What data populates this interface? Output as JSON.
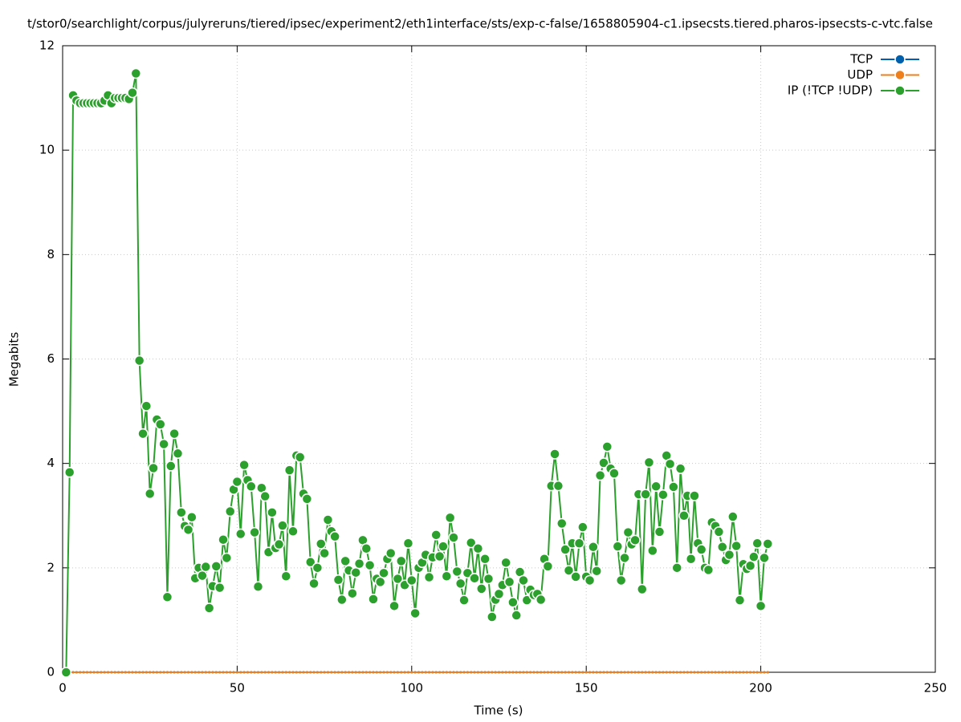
{
  "chart_data": {
    "type": "line",
    "title": "t/stor0/searchlight/corpus/julyreruns/tiered/ipsec/experiment2/eth1interface/sts/exp-c-false/1658805904-c1.ipsecsts.tiered.pharos-ipsecsts-c-vtc.false",
    "x_label": "Time (s)",
    "y_label": "Megabits",
    "xlim": [
      0,
      250
    ],
    "xticks": [
      0,
      50,
      100,
      150,
      200,
      250
    ],
    "ylim": [
      0,
      12
    ],
    "yticks": [
      0,
      2,
      4,
      6,
      8,
      10,
      12
    ],
    "grid": true,
    "legend": "top-right",
    "x": [
      1,
      2,
      3,
      4,
      5,
      6,
      7,
      8,
      9,
      10,
      11,
      12,
      13,
      14,
      15,
      16,
      17,
      18,
      19,
      20,
      21,
      22,
      23,
      24,
      25,
      26,
      27,
      28,
      29,
      30,
      31,
      32,
      33,
      34,
      35,
      36,
      37,
      38,
      39,
      40,
      41,
      42,
      43,
      44,
      45,
      46,
      47,
      48,
      49,
      50,
      51,
      52,
      53,
      54,
      55,
      56,
      57,
      58,
      59,
      60,
      61,
      62,
      63,
      64,
      65,
      66,
      67,
      68,
      69,
      70,
      71,
      72,
      73,
      74,
      75,
      76,
      77,
      78,
      79,
      80,
      81,
      82,
      83,
      84,
      85,
      86,
      87,
      88,
      89,
      90,
      91,
      92,
      93,
      94,
      95,
      96,
      97,
      98,
      99,
      100,
      101,
      102,
      103,
      104,
      105,
      106,
      107,
      108,
      109,
      110,
      111,
      112,
      113,
      114,
      115,
      116,
      117,
      118,
      119,
      120,
      121,
      122,
      123,
      124,
      125,
      126,
      127,
      128,
      129,
      130,
      131,
      132,
      133,
      134,
      135,
      136,
      137,
      138,
      139,
      140,
      141,
      142,
      143,
      144,
      145,
      146,
      147,
      148,
      149,
      150,
      151,
      152,
      153,
      154,
      155,
      156,
      157,
      158,
      159,
      160,
      161,
      162,
      163,
      164,
      165,
      166,
      167,
      168,
      169,
      170,
      171,
      172,
      173,
      174,
      175,
      176,
      177,
      178,
      179,
      180,
      181,
      182,
      183,
      184,
      185,
      186,
      187,
      188,
      189,
      190,
      191,
      192,
      193,
      194,
      195,
      196,
      197,
      198,
      199,
      200,
      201,
      202
    ],
    "series": [
      {
        "name": "TCP",
        "color": "#0060ad",
        "values": [
          0,
          0,
          0,
          0,
          0,
          0,
          0,
          0,
          0,
          0,
          0,
          0,
          0,
          0,
          0,
          0,
          0,
          0,
          0,
          0,
          0,
          0,
          0,
          0,
          0,
          0,
          0,
          0,
          0,
          0,
          0,
          0,
          0,
          0,
          0,
          0,
          0,
          0,
          0,
          0,
          0,
          0,
          0,
          0,
          0,
          0,
          0,
          0,
          0,
          0,
          0,
          0,
          0,
          0,
          0,
          0,
          0,
          0,
          0,
          0,
          0,
          0,
          0,
          0,
          0,
          0,
          0,
          0,
          0,
          0,
          0,
          0,
          0,
          0,
          0,
          0,
          0,
          0,
          0,
          0,
          0,
          0,
          0,
          0,
          0,
          0,
          0,
          0,
          0,
          0,
          0,
          0,
          0,
          0,
          0,
          0,
          0,
          0,
          0,
          0,
          0,
          0,
          0,
          0,
          0,
          0,
          0,
          0,
          0,
          0,
          0,
          0,
          0,
          0,
          0,
          0,
          0,
          0,
          0,
          0,
          0,
          0,
          0,
          0,
          0,
          0,
          0,
          0,
          0,
          0,
          0,
          0,
          0,
          0,
          0,
          0,
          0,
          0,
          0,
          0,
          0,
          0,
          0,
          0,
          0,
          0,
          0,
          0,
          0,
          0,
          0,
          0,
          0,
          0,
          0,
          0,
          0,
          0,
          0,
          0,
          0,
          0,
          0,
          0,
          0,
          0,
          0,
          0,
          0,
          0,
          0,
          0,
          0,
          0,
          0,
          0,
          0,
          0,
          0,
          0,
          0,
          0,
          0,
          0,
          0,
          0,
          0,
          0,
          0,
          0,
          0,
          0,
          0,
          0,
          0,
          0,
          0,
          0,
          0,
          0,
          0,
          0
        ]
      },
      {
        "name": "UDP",
        "color": "#ef7f1a",
        "values": [
          0,
          0,
          0,
          0,
          0,
          0,
          0,
          0,
          0,
          0,
          0,
          0,
          0,
          0,
          0,
          0,
          0,
          0,
          0,
          0,
          0,
          0,
          0,
          0,
          0,
          0,
          0,
          0,
          0,
          0,
          0,
          0,
          0,
          0,
          0,
          0,
          0,
          0,
          0,
          0,
          0,
          0,
          0,
          0,
          0,
          0,
          0,
          0,
          0,
          0,
          0,
          0,
          0,
          0,
          0,
          0,
          0,
          0,
          0,
          0,
          0,
          0,
          0,
          0,
          0,
          0,
          0,
          0,
          0,
          0,
          0,
          0,
          0,
          0,
          0,
          0,
          0,
          0,
          0,
          0,
          0,
          0,
          0,
          0,
          0,
          0,
          0,
          0,
          0,
          0,
          0,
          0,
          0,
          0,
          0,
          0,
          0,
          0,
          0,
          0,
          0,
          0,
          0,
          0,
          0,
          0,
          0,
          0,
          0,
          0,
          0,
          0,
          0,
          0,
          0,
          0,
          0,
          0,
          0,
          0,
          0,
          0,
          0,
          0,
          0,
          0,
          0,
          0,
          0,
          0,
          0,
          0,
          0,
          0,
          0,
          0,
          0,
          0,
          0,
          0,
          0,
          0,
          0,
          0,
          0,
          0,
          0,
          0,
          0,
          0,
          0,
          0,
          0,
          0,
          0,
          0,
          0,
          0,
          0,
          0,
          0,
          0,
          0,
          0,
          0,
          0,
          0,
          0,
          0,
          0,
          0,
          0,
          0,
          0,
          0,
          0,
          0,
          0,
          0,
          0,
          0,
          0,
          0,
          0,
          0,
          0,
          0,
          0,
          0,
          0,
          0,
          0,
          0,
          0,
          0,
          0,
          0,
          0,
          0,
          0,
          0,
          0
        ]
      },
      {
        "name": "IP (!TCP  !UDP)",
        "color": "#2ca02c",
        "values": [
          0,
          3.83,
          11.05,
          10.95,
          10.9,
          10.9,
          10.9,
          10.9,
          10.9,
          10.9,
          10.9,
          10.95,
          11.05,
          10.9,
          11.0,
          11.0,
          11.0,
          11.0,
          10.98,
          11.1,
          11.47,
          5.97,
          4.57,
          5.1,
          3.42,
          3.91,
          4.84,
          4.75,
          4.37,
          1.44,
          3.95,
          4.57,
          4.19,
          3.06,
          2.8,
          2.73,
          2.97,
          1.8,
          2.0,
          1.85,
          2.02,
          1.23,
          1.65,
          2.03,
          1.62,
          2.54,
          2.19,
          3.08,
          3.5,
          3.65,
          2.65,
          3.97,
          3.68,
          3.56,
          2.68,
          1.64,
          3.53,
          3.37,
          2.3,
          3.06,
          2.38,
          2.45,
          2.81,
          1.84,
          3.87,
          2.7,
          4.15,
          4.12,
          3.42,
          3.32,
          2.11,
          1.7,
          2.0,
          2.46,
          2.28,
          2.92,
          2.7,
          2.6,
          1.77,
          1.39,
          2.13,
          1.95,
          1.51,
          1.91,
          2.08,
          2.53,
          2.37,
          2.05,
          1.4,
          1.79,
          1.73,
          1.9,
          2.17,
          2.28,
          1.27,
          1.79,
          2.13,
          1.67,
          2.47,
          1.76,
          1.13,
          2.0,
          2.1,
          2.25,
          1.82,
          2.2,
          2.63,
          2.22,
          2.41,
          1.84,
          2.96,
          2.58,
          1.93,
          1.7,
          1.38,
          1.9,
          2.48,
          1.8,
          2.37,
          1.6,
          2.17,
          1.79,
          1.06,
          1.39,
          1.5,
          1.67,
          2.1,
          1.73,
          1.34,
          1.09,
          1.92,
          1.76,
          1.38,
          1.58,
          1.48,
          1.5,
          1.39,
          2.17,
          2.03,
          3.57,
          4.18,
          3.57,
          2.85,
          2.35,
          1.95,
          2.47,
          1.83,
          2.47,
          2.78,
          1.83,
          1.76,
          2.4,
          1.94,
          3.77,
          4.01,
          4.32,
          3.9,
          3.81,
          2.41,
          1.76,
          2.19,
          2.68,
          2.45,
          2.53,
          3.41,
          1.59,
          3.41,
          4.02,
          2.33,
          3.56,
          2.69,
          3.4,
          4.15,
          3.99,
          3.55,
          2.0,
          3.9,
          3.0,
          3.38,
          2.17,
          3.38,
          2.47,
          2.35,
          2.0,
          1.96,
          2.87,
          2.8,
          2.69,
          2.4,
          2.15,
          2.25,
          2.98,
          2.42,
          1.38,
          2.07,
          1.98,
          2.04,
          2.21,
          2.47,
          1.27,
          2.19,
          2.46
        ]
      }
    ]
  }
}
